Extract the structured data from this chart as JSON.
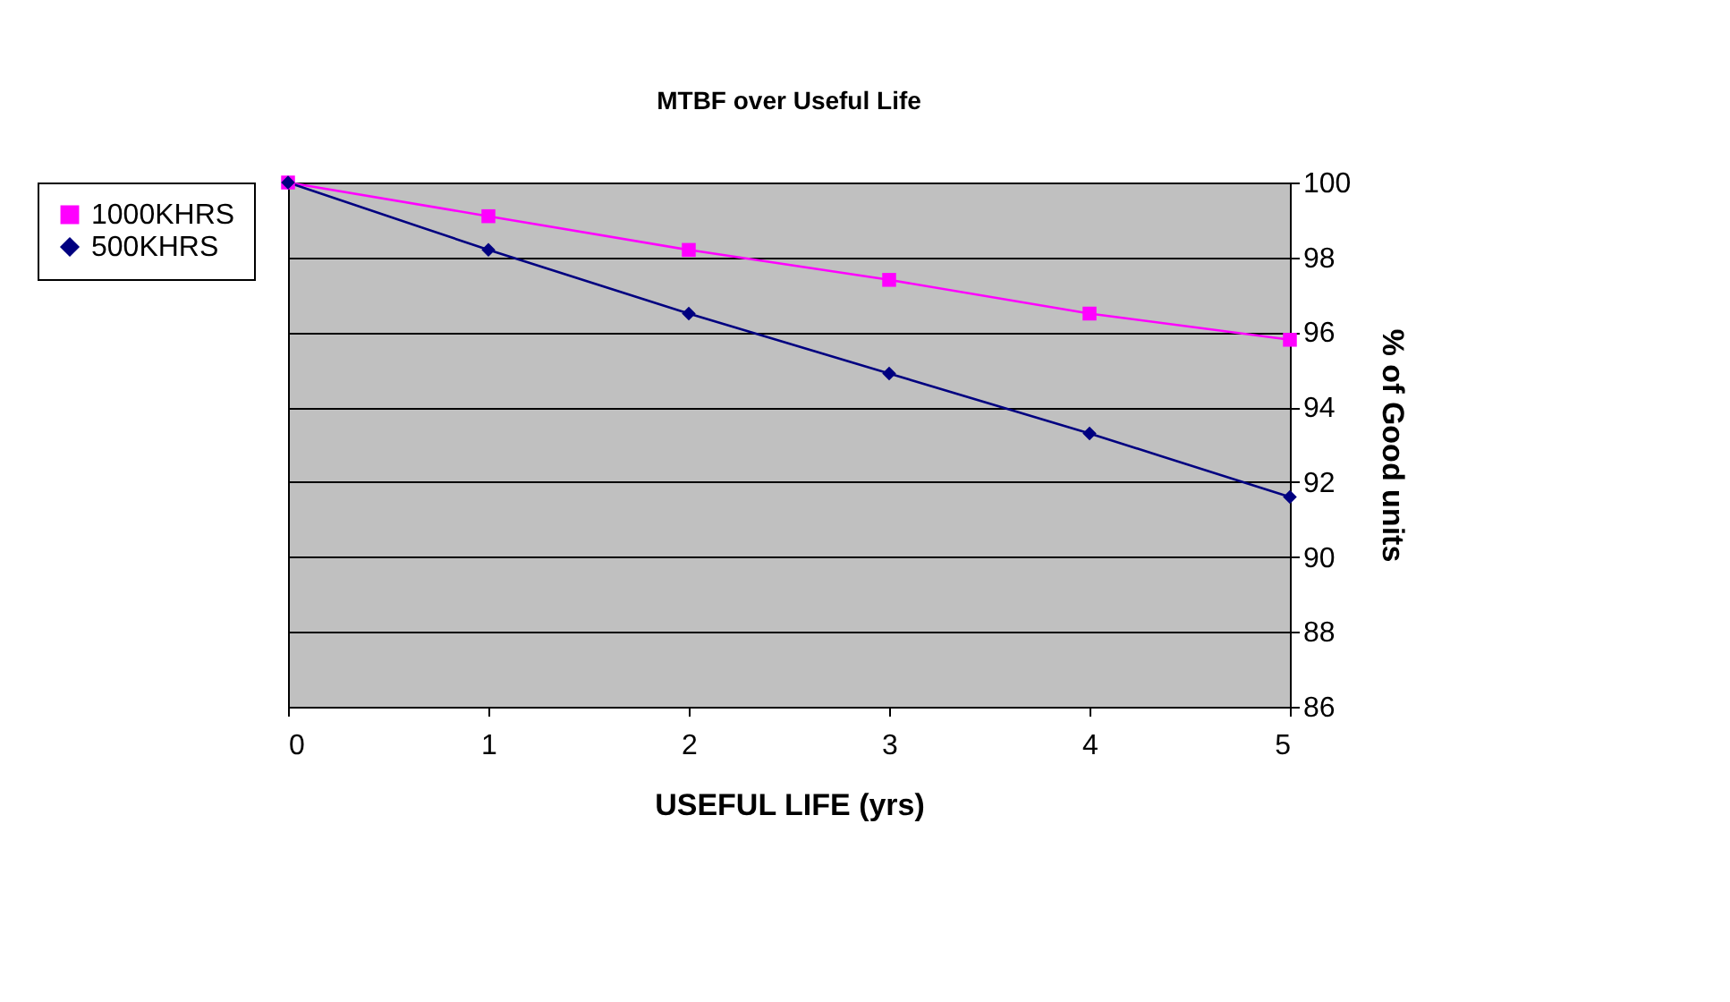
{
  "chart_data": {
    "type": "line",
    "title": "MTBF  over Useful Life",
    "xlabel": "USEFUL LIFE (yrs)",
    "ylabel": "% of Good units",
    "x": [
      0,
      1,
      2,
      3,
      4,
      5
    ],
    "series": [
      {
        "name": "1000KHRS",
        "color": "#ff00ff",
        "marker": "square",
        "values": [
          100,
          99.1,
          98.2,
          97.4,
          96.5,
          95.8
        ]
      },
      {
        "name": "500KHRS",
        "color": "#000080",
        "marker": "diamond",
        "values": [
          100,
          98.2,
          96.5,
          94.9,
          93.3,
          91.6
        ]
      }
    ],
    "xlim": [
      0,
      5
    ],
    "xticks": [
      0,
      1,
      2,
      3,
      4,
      5
    ],
    "ylim": [
      86,
      100
    ],
    "yticks": [
      86,
      88,
      90,
      92,
      94,
      96,
      98,
      100
    ],
    "grid": "y",
    "legend": "left",
    "line_style": "solid"
  }
}
